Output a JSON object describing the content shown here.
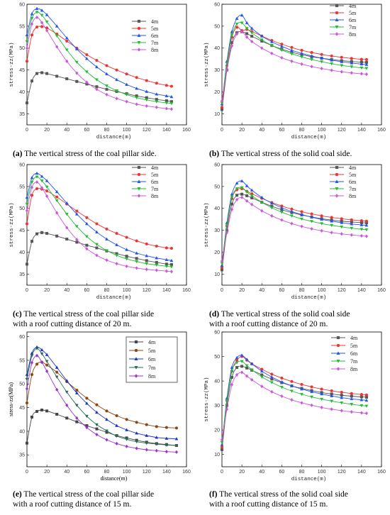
{
  "styles": {
    "colors": {
      "4m": "#555555",
      "5m": "#ee3333",
      "6m": "#2255ee",
      "7m": "#22bb33",
      "8m": "#cc55dd"
    },
    "colors_e": {
      "4m": "#444444",
      "5m": "#8b4513",
      "6m": "#1a33cc",
      "7m": "#2a6a55",
      "8m": "#9933cc"
    }
  },
  "captions": [
    {
      "letter": "(a)",
      "text": " The vertical stress of the coal pillar side."
    },
    {
      "letter": "(b)",
      "text": " The vertical stress of the solid coal side."
    },
    {
      "letter": "(c)",
      "text": " The vertical stress of the coal pillar side",
      "text2": "with a roof cutting distance of 20 m."
    },
    {
      "letter": "(d)",
      "text": " The vertical stress of the solid coal side",
      "text2": "with a roof cutting distance of 20 m."
    },
    {
      "letter": "(e)",
      "text": " The vertical stress of the coal pillar side",
      "text2": "with a roof cutting distance of 15 m."
    },
    {
      "letter": "(f)",
      "text": " The vertical stress of the solid coal side",
      "text2": "with a roof cutting distance of 15 m."
    }
  ],
  "chart_data": [
    {
      "id": "a",
      "type": "line",
      "xlabel": "distance(m)",
      "ylabel": "stress-zz(MPa)",
      "xlim": [
        0,
        160
      ],
      "ylim": [
        32.5,
        60
      ],
      "xticks": [
        0,
        20,
        40,
        60,
        80,
        100,
        120,
        140,
        160
      ],
      "yticks": [
        35,
        40,
        45,
        50,
        55,
        60
      ],
      "x": [
        0,
        5,
        10,
        15,
        20,
        30,
        40,
        50,
        60,
        70,
        80,
        90,
        100,
        110,
        120,
        130,
        140,
        145
      ],
      "series": [
        {
          "name": "4m",
          "marker": "square",
          "values": [
            37.5,
            42.5,
            44.2,
            44.4,
            44.2,
            43.6,
            43.0,
            42.4,
            41.8,
            41.2,
            40.6,
            40.1,
            39.6,
            39.1,
            38.7,
            38.3,
            38.0,
            37.8
          ]
        },
        {
          "name": "5m",
          "marker": "circle",
          "values": [
            47.0,
            53.0,
            54.8,
            54.9,
            54.6,
            53.2,
            51.6,
            50.0,
            48.5,
            47.2,
            46.0,
            45.0,
            44.1,
            43.3,
            42.6,
            42.0,
            41.5,
            41.3
          ]
        },
        {
          "name": "6m",
          "marker": "triangle-up",
          "values": [
            53.0,
            57.8,
            59.0,
            58.6,
            57.6,
            55.0,
            52.3,
            49.8,
            47.6,
            45.7,
            44.1,
            42.8,
            41.7,
            40.8,
            40.1,
            39.5,
            39.1,
            38.9
          ]
        },
        {
          "name": "7m",
          "marker": "triangle-down",
          "values": [
            51.5,
            56.8,
            58.2,
            57.5,
            56.0,
            52.8,
            49.6,
            46.8,
            44.6,
            42.8,
            41.4,
            40.3,
            39.4,
            38.7,
            38.2,
            37.8,
            37.5,
            37.4
          ]
        },
        {
          "name": "8m",
          "marker": "diamond",
          "values": [
            50.0,
            55.5,
            57.0,
            55.8,
            54.0,
            50.3,
            47.0,
            44.3,
            42.2,
            40.6,
            39.4,
            38.5,
            37.8,
            37.2,
            36.8,
            36.5,
            36.2,
            36.1
          ]
        }
      ]
    },
    {
      "id": "b",
      "type": "line",
      "xlabel": "distance(m)",
      "ylabel": "stress-zz(MPa)",
      "xlim": [
        0,
        160
      ],
      "ylim": [
        5,
        60
      ],
      "xticks": [
        0,
        20,
        40,
        60,
        80,
        100,
        120,
        140,
        160
      ],
      "yticks": [
        10,
        20,
        30,
        40,
        50,
        60
      ],
      "x": [
        0,
        5,
        10,
        15,
        20,
        25,
        30,
        40,
        50,
        60,
        70,
        80,
        90,
        100,
        110,
        120,
        130,
        140,
        145
      ],
      "series": [
        {
          "name": "4m",
          "marker": "square",
          "values": [
            12.0,
            30.0,
            42.5,
            47.0,
            47.5,
            46.6,
            45.4,
            43.2,
            41.2,
            39.5,
            38.1,
            37.0,
            36.1,
            35.4,
            34.8,
            34.3,
            33.9,
            33.6,
            33.5
          ]
        },
        {
          "name": "5m",
          "marker": "circle",
          "values": [
            13.0,
            32.0,
            45.0,
            49.5,
            48.0,
            48.5,
            47.6,
            45.5,
            43.5,
            41.8,
            40.3,
            39.0,
            38.0,
            37.1,
            36.4,
            35.8,
            35.3,
            34.9,
            34.8
          ]
        },
        {
          "name": "6m",
          "marker": "triangle-up",
          "values": [
            14.5,
            34.0,
            47.5,
            53.5,
            55.0,
            51.5,
            49.0,
            45.5,
            42.9,
            40.8,
            39.0,
            37.6,
            36.4,
            35.4,
            34.5,
            33.8,
            33.2,
            32.7,
            32.5
          ]
        },
        {
          "name": "7m",
          "marker": "triangle-down",
          "values": [
            15.0,
            33.0,
            46.0,
            51.0,
            51.5,
            49.0,
            47.0,
            43.8,
            41.2,
            39.1,
            37.4,
            36.0,
            34.8,
            33.8,
            32.9,
            32.1,
            31.5,
            31.0,
            30.8
          ]
        },
        {
          "name": "8m",
          "marker": "diamond",
          "values": [
            16.0,
            30.0,
            41.0,
            46.5,
            47.5,
            45.0,
            43.0,
            40.0,
            37.6,
            35.6,
            34.0,
            32.7,
            31.6,
            30.7,
            29.9,
            29.2,
            28.7,
            28.3,
            28.1
          ]
        }
      ]
    },
    {
      "id": "c",
      "type": "line",
      "xlabel": "distance(m)",
      "ylabel": "stress-zz(MPa)",
      "xlim": [
        0,
        160
      ],
      "ylim": [
        32.5,
        60
      ],
      "xticks": [
        0,
        20,
        40,
        60,
        80,
        100,
        120,
        140,
        160
      ],
      "yticks": [
        35,
        40,
        45,
        50,
        55,
        60
      ],
      "x": [
        0,
        5,
        10,
        15,
        20,
        30,
        40,
        50,
        60,
        70,
        80,
        90,
        100,
        110,
        120,
        130,
        140,
        145
      ],
      "series": [
        {
          "name": "4m",
          "marker": "square",
          "values": [
            37.3,
            42.5,
            44.2,
            44.5,
            44.3,
            43.7,
            43.0,
            42.3,
            41.6,
            41.0,
            40.3,
            39.7,
            39.1,
            38.6,
            38.1,
            37.7,
            37.3,
            37.2
          ]
        },
        {
          "name": "5m",
          "marker": "circle",
          "values": [
            46.5,
            53.0,
            54.5,
            54.4,
            54.0,
            52.6,
            51.0,
            49.4,
            47.9,
            46.5,
            45.3,
            44.3,
            43.4,
            42.6,
            41.9,
            41.4,
            41.0,
            40.9
          ]
        },
        {
          "name": "6m",
          "marker": "triangle-up",
          "values": [
            52.5,
            57.0,
            58.0,
            57.3,
            56.3,
            53.8,
            51.2,
            48.7,
            46.5,
            44.6,
            43.0,
            41.7,
            40.6,
            39.8,
            39.2,
            38.7,
            38.3,
            38.1
          ]
        },
        {
          "name": "7m",
          "marker": "triangle-down",
          "values": [
            51.0,
            56.0,
            57.2,
            56.3,
            54.9,
            51.8,
            48.7,
            45.9,
            43.6,
            41.8,
            40.4,
            39.3,
            38.5,
            37.9,
            37.4,
            37.1,
            36.8,
            36.7
          ]
        },
        {
          "name": "8m",
          "marker": "diamond",
          "values": [
            49.5,
            54.8,
            56.0,
            54.7,
            52.8,
            49.0,
            45.6,
            42.9,
            40.8,
            39.3,
            38.2,
            37.4,
            36.8,
            36.4,
            36.1,
            35.9,
            35.7,
            35.6
          ]
        }
      ]
    },
    {
      "id": "d",
      "type": "line",
      "xlabel": "distance(m)",
      "ylabel": "stress-zz(MPa)",
      "xlim": [
        0,
        160
      ],
      "ylim": [
        5,
        60
      ],
      "xticks": [
        0,
        20,
        40,
        60,
        80,
        100,
        120,
        140,
        160
      ],
      "yticks": [
        10,
        20,
        30,
        40,
        50,
        60
      ],
      "x": [
        0,
        5,
        10,
        15,
        20,
        25,
        30,
        40,
        50,
        60,
        70,
        80,
        90,
        100,
        110,
        120,
        130,
        140,
        145
      ],
      "series": [
        {
          "name": "4m",
          "marker": "square",
          "values": [
            12.0,
            30.0,
            42.0,
            46.0,
            46.5,
            45.8,
            44.8,
            42.8,
            41.0,
            39.4,
            38.1,
            37.0,
            36.1,
            35.3,
            34.7,
            34.2,
            33.8,
            33.5,
            33.4
          ]
        },
        {
          "name": "5m",
          "marker": "circle",
          "values": [
            13.0,
            32.0,
            44.5,
            48.5,
            49.0,
            47.8,
            46.7,
            44.6,
            42.7,
            41.1,
            39.7,
            38.5,
            37.5,
            36.6,
            35.9,
            35.3,
            34.8,
            34.4,
            34.2
          ]
        },
        {
          "name": "6m",
          "marker": "triangle-up",
          "values": [
            14.0,
            33.5,
            46.5,
            51.5,
            52.5,
            50.3,
            48.3,
            45.0,
            42.4,
            40.3,
            38.6,
            37.2,
            36.0,
            35.0,
            34.2,
            33.5,
            32.9,
            32.5,
            32.3
          ]
        },
        {
          "name": "7m",
          "marker": "triangle-down",
          "values": [
            15.0,
            32.5,
            45.0,
            49.0,
            49.5,
            47.5,
            45.8,
            42.8,
            40.3,
            38.3,
            36.6,
            35.2,
            34.1,
            33.1,
            32.3,
            31.6,
            31.0,
            30.5,
            30.3
          ]
        },
        {
          "name": "8m",
          "marker": "diamond",
          "values": [
            16.0,
            29.0,
            39.5,
            44.0,
            45.0,
            43.4,
            41.8,
            38.9,
            36.6,
            34.7,
            33.1,
            31.8,
            30.7,
            29.8,
            29.0,
            28.4,
            27.9,
            27.5,
            27.3
          ]
        }
      ]
    },
    {
      "id": "e",
      "type": "line",
      "xlabel": "distance(m)",
      "ylabel": "stress-zz(MPa)",
      "xlim": [
        0,
        160
      ],
      "ylim": [
        32.5,
        61
      ],
      "xticks": [
        0,
        20,
        40,
        60,
        80,
        100,
        120,
        140,
        160
      ],
      "yticks": [
        35,
        40,
        45,
        50,
        55,
        60
      ],
      "x": [
        0,
        5,
        10,
        15,
        20,
        30,
        40,
        50,
        60,
        70,
        80,
        90,
        100,
        110,
        120,
        130,
        140,
        150
      ],
      "series": [
        {
          "name": "4m",
          "marker": "square",
          "values": [
            37.5,
            43.0,
            44.2,
            44.5,
            44.3,
            43.6,
            42.8,
            42.0,
            41.2,
            40.5,
            39.8,
            39.1,
            38.6,
            38.1,
            37.7,
            37.4,
            37.2,
            37.0
          ]
        },
        {
          "name": "5m",
          "marker": "circle",
          "values": [
            46.0,
            52.0,
            54.2,
            54.6,
            54.0,
            52.5,
            50.5,
            48.7,
            47.0,
            45.6,
            44.3,
            43.3,
            42.5,
            41.9,
            41.4,
            41.0,
            40.8,
            40.7
          ]
        },
        {
          "name": "6m",
          "marker": "triangle-up",
          "values": [
            52.0,
            56.5,
            57.8,
            57.2,
            56.2,
            53.5,
            50.7,
            48.1,
            45.9,
            44.0,
            42.5,
            41.2,
            40.3,
            39.6,
            39.1,
            38.7,
            38.5,
            38.4
          ]
        },
        {
          "name": "7m",
          "marker": "triangle-down",
          "values": [
            51.0,
            56.0,
            57.5,
            56.4,
            54.8,
            51.5,
            48.3,
            45.5,
            43.2,
            41.4,
            40.1,
            39.0,
            38.3,
            37.8,
            37.5,
            37.3,
            37.1,
            37.0
          ]
        },
        {
          "name": "8m",
          "marker": "diamond",
          "values": [
            49.0,
            54.5,
            56.0,
            54.6,
            52.7,
            48.8,
            45.5,
            42.8,
            40.8,
            39.3,
            38.2,
            37.4,
            36.8,
            36.4,
            36.1,
            35.9,
            35.7,
            35.6
          ]
        }
      ]
    },
    {
      "id": "f",
      "type": "line",
      "xlabel": "distance(m)",
      "ylabel": "stress-zz(MPa)",
      "xlim": [
        0,
        160
      ],
      "ylim": [
        5,
        60
      ],
      "xticks": [
        0,
        20,
        40,
        60,
        80,
        100,
        120,
        140,
        160
      ],
      "yticks": [
        10,
        20,
        30,
        40,
        50,
        60
      ],
      "x": [
        0,
        5,
        10,
        15,
        20,
        25,
        30,
        40,
        50,
        60,
        70,
        80,
        90,
        100,
        110,
        120,
        130,
        140,
        145
      ],
      "series": [
        {
          "name": "4m",
          "marker": "square",
          "values": [
            12.0,
            30.0,
            41.5,
            45.5,
            46.0,
            45.3,
            44.4,
            42.5,
            40.8,
            39.3,
            38.0,
            37.0,
            36.1,
            35.3,
            34.7,
            34.2,
            33.8,
            33.5,
            33.4
          ]
        },
        {
          "name": "5m",
          "marker": "circle",
          "values": [
            13.0,
            32.0,
            44.0,
            48.5,
            50.0,
            48.5,
            47.0,
            44.8,
            42.8,
            41.2,
            39.8,
            38.6,
            37.6,
            36.7,
            36.0,
            35.4,
            34.9,
            34.5,
            34.3
          ]
        },
        {
          "name": "6m",
          "marker": "triangle-up",
          "values": [
            14.0,
            33.0,
            45.5,
            49.5,
            50.5,
            48.8,
            47.0,
            44.0,
            41.6,
            39.6,
            38.0,
            36.7,
            35.6,
            34.7,
            33.9,
            33.2,
            32.7,
            32.3,
            32.1
          ]
        },
        {
          "name": "7m",
          "marker": "triangle-down",
          "values": [
            15.0,
            32.0,
            44.0,
            47.5,
            48.0,
            46.3,
            44.6,
            41.7,
            39.4,
            37.5,
            35.9,
            34.6,
            33.5,
            32.6,
            31.8,
            31.1,
            30.5,
            30.0,
            29.8
          ]
        },
        {
          "name": "8m",
          "marker": "diamond",
          "values": [
            16.0,
            28.5,
            38.5,
            42.5,
            43.5,
            42.0,
            40.5,
            37.8,
            35.6,
            33.8,
            32.3,
            31.1,
            30.1,
            29.2,
            28.5,
            27.9,
            27.4,
            27.0,
            26.8
          ]
        }
      ]
    }
  ]
}
